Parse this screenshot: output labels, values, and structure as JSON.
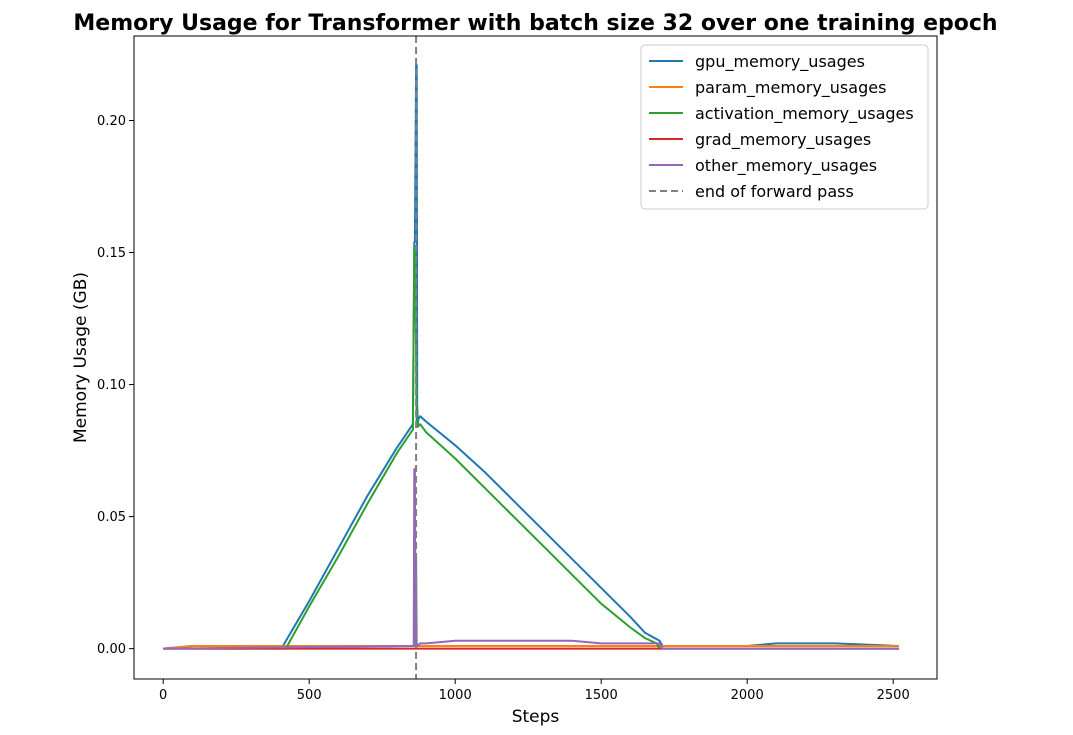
{
  "chart_data": {
    "type": "line",
    "title": "Memory Usage for Transformer with batch size 32 over one training epoch",
    "xlabel": "Steps",
    "ylabel": "Memory Usage (GB)",
    "xlim": [
      -100,
      2650
    ],
    "ylim": [
      -0.0115,
      0.232
    ],
    "xticks": [
      0,
      500,
      1000,
      1500,
      2000,
      2500
    ],
    "yticks": [
      0.0,
      0.05,
      0.1,
      0.15,
      0.2
    ],
    "ytick_labels": [
      "0.00",
      "0.05",
      "0.10",
      "0.15",
      "0.20"
    ],
    "legend_position": "top-right",
    "grid": false,
    "series": [
      {
        "name": "gpu_memory_usages",
        "color": "#1f77b4",
        "x": [
          0,
          100,
          410,
          500,
          600,
          700,
          800,
          855,
          860,
          862,
          866,
          868,
          870,
          872,
          874,
          880,
          900,
          1000,
          1100,
          1200,
          1300,
          1400,
          1500,
          1600,
          1650,
          1700,
          1710,
          2000,
          2100,
          2300,
          2520
        ],
        "y": [
          0.0,
          0.001,
          0.001,
          0.018,
          0.038,
          0.058,
          0.076,
          0.085,
          0.154,
          0.154,
          0.221,
          0.221,
          0.092,
          0.085,
          0.087,
          0.088,
          0.086,
          0.077,
          0.067,
          0.056,
          0.045,
          0.034,
          0.023,
          0.012,
          0.006,
          0.003,
          0.001,
          0.001,
          0.002,
          0.002,
          0.001
        ]
      },
      {
        "name": "param_memory_usages",
        "color": "#ff7f0e",
        "x": [
          0,
          100,
          2520
        ],
        "y": [
          0.0,
          0.001,
          0.001
        ]
      },
      {
        "name": "activation_memory_usages",
        "color": "#2ca02c",
        "x": [
          0,
          420,
          500,
          600,
          700,
          800,
          855,
          860,
          863,
          868,
          872,
          880,
          900,
          1000,
          1100,
          1200,
          1300,
          1400,
          1500,
          1600,
          1650,
          1690,
          1700,
          2520
        ],
        "y": [
          0.0,
          0.0,
          0.016,
          0.035,
          0.055,
          0.074,
          0.083,
          0.152,
          0.152,
          0.086,
          0.084,
          0.085,
          0.082,
          0.072,
          0.061,
          0.05,
          0.039,
          0.028,
          0.017,
          0.008,
          0.004,
          0.002,
          0.0,
          0.0
        ]
      },
      {
        "name": "grad_memory_usages",
        "color": "#d62728",
        "x": [
          0,
          2520
        ],
        "y": [
          0.0,
          0.0
        ]
      },
      {
        "name": "other_memory_usages",
        "color": "#9467bd",
        "x": [
          0,
          850,
          858,
          860,
          862,
          864,
          866,
          868,
          872,
          880,
          900,
          1000,
          1100,
          1200,
          1300,
          1400,
          1500,
          1600,
          1700,
          1710,
          2520
        ],
        "y": [
          0.0,
          0.001,
          0.001,
          0.068,
          0.068,
          0.001,
          0.035,
          0.002,
          0.001,
          0.002,
          0.002,
          0.003,
          0.003,
          0.003,
          0.003,
          0.003,
          0.002,
          0.002,
          0.002,
          0.0,
          0.0
        ]
      }
    ],
    "reference_lines": [
      {
        "name": "end of forward pass",
        "orientation": "vertical",
        "x": 866,
        "color": "#808080",
        "style": "dashed"
      }
    ]
  }
}
